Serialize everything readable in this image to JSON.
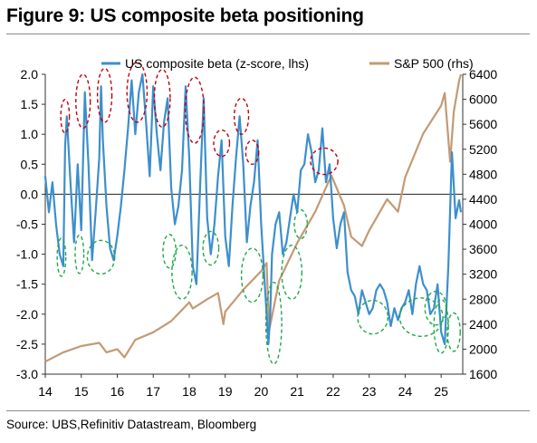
{
  "title": "Figure 9: US composite beta positioning",
  "source": "Source: UBS,Refinitiv Datastream, Bloomberg",
  "colors": {
    "beta": "#3d8fcc",
    "sp500": "#c39a73",
    "overbought": "#c0000b",
    "oversold": "#1fa84b"
  },
  "chart_data": {
    "type": "line",
    "xlabel": "",
    "ylabel": "",
    "y2label": "",
    "x_tick_labels": [
      "14",
      "15",
      "16",
      "17",
      "18",
      "19",
      "20",
      "21",
      "22",
      "23",
      "24",
      "25"
    ],
    "xlim": [
      2014.0,
      2025.6
    ],
    "y_left": {
      "lim": [
        -3.0,
        2.0
      ],
      "ticks": [
        "-3.0",
        "-2.5",
        "-2.0",
        "-1.5",
        "-1.0",
        "-0.5",
        "0.0",
        "0.5",
        "1.0",
        "1.5",
        "2.0"
      ]
    },
    "y_right": {
      "lim": [
        1600,
        6400
      ],
      "ticks": [
        "1600",
        "2000",
        "2400",
        "2800",
        "3200",
        "3600",
        "4000",
        "4400",
        "4800",
        "5200",
        "5600",
        "6000",
        "6400"
      ]
    },
    "legend": {
      "placement": "top",
      "entries": [
        "US composite beta (z-score, lhs)",
        "S&P 500 (rhs)"
      ]
    },
    "series": [
      {
        "name": "US composite beta (z-score, lhs)",
        "axis": "left",
        "x": [
          2014.0,
          2014.1,
          2014.2,
          2014.3,
          2014.4,
          2014.5,
          2014.55,
          2014.6,
          2014.7,
          2014.8,
          2014.9,
          2015.0,
          2015.1,
          2015.2,
          2015.3,
          2015.4,
          2015.5,
          2015.55,
          2015.6,
          2015.7,
          2015.8,
          2015.9,
          2016.0,
          2016.1,
          2016.2,
          2016.3,
          2016.4,
          2016.5,
          2016.6,
          2016.7,
          2016.8,
          2016.9,
          2017.0,
          2017.1,
          2017.2,
          2017.3,
          2017.4,
          2017.5,
          2017.6,
          2017.7,
          2017.8,
          2017.9,
          2018.0,
          2018.1,
          2018.2,
          2018.3,
          2018.4,
          2018.5,
          2018.6,
          2018.7,
          2018.8,
          2018.9,
          2019.0,
          2019.1,
          2019.2,
          2019.3,
          2019.4,
          2019.5,
          2019.6,
          2019.7,
          2019.8,
          2019.9,
          2020.0,
          2020.1,
          2020.2,
          2020.25,
          2020.3,
          2020.4,
          2020.5,
          2020.6,
          2020.7,
          2020.8,
          2020.9,
          2021.0,
          2021.1,
          2021.2,
          2021.3,
          2021.4,
          2021.5,
          2021.6,
          2021.7,
          2021.8,
          2021.9,
          2022.0,
          2022.1,
          2022.2,
          2022.3,
          2022.4,
          2022.5,
          2022.6,
          2022.7,
          2022.8,
          2022.9,
          2023.0,
          2023.1,
          2023.2,
          2023.3,
          2023.4,
          2023.5,
          2023.6,
          2023.7,
          2023.8,
          2023.9,
          2024.0,
          2024.1,
          2024.2,
          2024.3,
          2024.4,
          2024.5,
          2024.6,
          2024.7,
          2024.8,
          2024.9,
          2025.0,
          2025.1,
          2025.2,
          2025.3,
          2025.4,
          2025.5,
          2025.55
        ],
        "y": [
          0.3,
          -0.3,
          0.2,
          -0.5,
          -1.0,
          -1.2,
          0.8,
          1.3,
          0.2,
          -0.8,
          0.5,
          -0.6,
          1.7,
          0.5,
          -1.1,
          -0.3,
          0.6,
          1.8,
          0.9,
          -0.2,
          -0.9,
          -1.1,
          -0.7,
          -0.2,
          0.4,
          1.1,
          1.9,
          1.0,
          1.7,
          2.0,
          1.2,
          0.3,
          1.8,
          1.0,
          0.4,
          1.2,
          1.6,
          0.1,
          -0.5,
          -0.2,
          0.4,
          1.8,
          0.6,
          -1.2,
          -1.5,
          0.1,
          1.6,
          -0.4,
          -1.0,
          -0.5,
          0.3,
          0.9,
          -0.7,
          -1.2,
          -0.2,
          0.6,
          1.3,
          0.5,
          -0.8,
          -0.2,
          0.2,
          0.9,
          -0.5,
          -1.5,
          -2.5,
          -2.0,
          -1.0,
          -0.5,
          -0.3,
          -1.0,
          -0.8,
          -0.4,
          0.0,
          -0.3,
          0.4,
          0.5,
          1.0,
          0.7,
          0.2,
          0.4,
          1.1,
          0.2,
          0.5,
          -0.4,
          -0.9,
          -0.5,
          -0.3,
          -1.3,
          -1.6,
          -1.7,
          -2.0,
          -1.6,
          -1.8,
          -2.0,
          -1.9,
          -1.6,
          -1.5,
          -1.6,
          -1.8,
          -2.2,
          -1.9,
          -2.1,
          -1.9,
          -1.8,
          -1.6,
          -2.0,
          -1.5,
          -1.2,
          -1.5,
          -1.6,
          -2.0,
          -1.9,
          -1.5,
          -2.3,
          -2.5,
          -1.2,
          0.7,
          -0.4,
          -0.1,
          -0.3
        ]
      },
      {
        "name": "S&P 500 (rhs)",
        "axis": "right",
        "x": [
          2014.0,
          2014.5,
          2015.0,
          2015.5,
          2015.7,
          2016.0,
          2016.2,
          2016.5,
          2017.0,
          2017.5,
          2018.0,
          2018.1,
          2018.5,
          2018.8,
          2018.95,
          2019.0,
          2019.5,
          2020.0,
          2020.15,
          2020.22,
          2020.5,
          2021.0,
          2021.5,
          2021.95,
          2022.3,
          2022.5,
          2022.8,
          2023.0,
          2023.5,
          2023.8,
          2024.0,
          2024.5,
          2025.0,
          2025.1,
          2025.25,
          2025.35,
          2025.5,
          2025.55
        ],
        "y": [
          1800,
          1950,
          2050,
          2100,
          1950,
          2000,
          1870,
          2150,
          2270,
          2450,
          2750,
          2650,
          2800,
          2900,
          2400,
          2600,
          2950,
          3250,
          3380,
          2300,
          3100,
          3700,
          4200,
          4780,
          4300,
          3800,
          3650,
          3900,
          4400,
          4200,
          4750,
          5450,
          5900,
          6100,
          5000,
          5800,
          6300,
          6400
        ]
      }
    ],
    "annotations": {
      "overbought_circles": 12,
      "oversold_circles": 15
    }
  }
}
